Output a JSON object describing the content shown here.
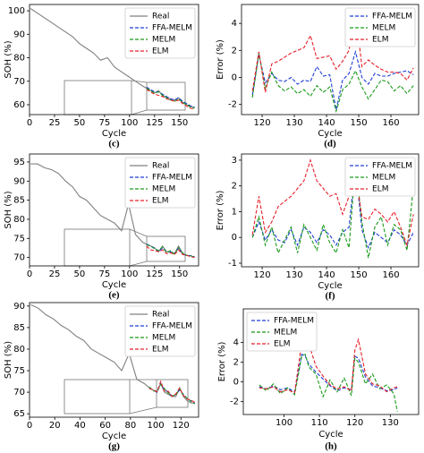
{
  "chart_data": [
    {
      "type": "line",
      "caption": "(c)",
      "xlabel": "Cycle",
      "ylabel": "SOH (%)",
      "legend": "upper right",
      "xlim": [
        0,
        169
      ],
      "ylim": [
        55.8,
        102.7
      ],
      "xticks": [
        0,
        25,
        50,
        75,
        100,
        125,
        150
      ],
      "yticks": [
        60,
        70,
        80,
        90,
        100
      ],
      "x": [
        1,
        8,
        15,
        22,
        29,
        36,
        43,
        50,
        57,
        64,
        71,
        78,
        85,
        92,
        99,
        106,
        113,
        117,
        121,
        125,
        129,
        133,
        137,
        141,
        145,
        149,
        153,
        157,
        161,
        165
      ],
      "series": [
        {
          "name": "Real",
          "color": "#808080",
          "linestyle": "solid",
          "values": [
            101,
            99,
            97,
            95,
            93,
            91,
            89,
            86,
            84,
            82,
            79,
            80,
            76,
            74,
            72,
            70,
            68,
            67,
            66,
            65,
            66,
            64,
            63,
            62.5,
            62,
            63,
            61,
            60,
            59.5,
            58.5
          ]
        },
        {
          "name": "FFA-MELM",
          "color": "#1f3fd6",
          "linestyle": "dashed",
          "values": [
            null,
            null,
            null,
            null,
            null,
            null,
            null,
            null,
            null,
            null,
            null,
            null,
            null,
            null,
            null,
            null,
            null,
            67.5,
            66.5,
            65.5,
            65.5,
            64.5,
            63.5,
            62.5,
            62,
            63,
            61.5,
            60.5,
            59.5,
            59
          ]
        },
        {
          "name": "MELM",
          "color": "#1a9a1a",
          "linestyle": "dashed",
          "values": [
            null,
            null,
            null,
            null,
            null,
            null,
            null,
            null,
            null,
            null,
            null,
            null,
            null,
            null,
            null,
            null,
            null,
            67,
            66,
            65,
            65.5,
            64,
            63,
            62,
            61.5,
            62.5,
            61,
            60,
            59,
            58.5
          ]
        },
        {
          "name": "ELM",
          "color": "#e8202a",
          "linestyle": "dashed",
          "values": [
            null,
            null,
            null,
            null,
            null,
            null,
            null,
            null,
            null,
            null,
            null,
            null,
            null,
            null,
            null,
            null,
            null,
            66.5,
            65.5,
            64.5,
            64,
            63.5,
            62.5,
            62,
            61.5,
            62,
            60.5,
            59.5,
            58.5,
            58
          ]
        }
      ]
    },
    {
      "type": "line",
      "caption": "(d)",
      "xlabel": "Cycle",
      "ylabel": "Error (%)",
      "legend": "upper right",
      "xlim": [
        113.6,
        168.6
      ],
      "ylim": [
        -2.75,
        5.4
      ],
      "xticks": [
        120,
        130,
        140,
        150,
        160
      ],
      "yticks": [
        -2,
        0,
        2,
        4
      ],
      "x": [
        117,
        119,
        121,
        123,
        125,
        127,
        129,
        131,
        133,
        135,
        137,
        139,
        141,
        143,
        145,
        147,
        149,
        151,
        153,
        155,
        157,
        159,
        161,
        163,
        165,
        167
      ],
      "series": [
        {
          "name": "FFA-MELM",
          "color": "#1f3fd6",
          "linestyle": "dashed",
          "values": [
            -1.3,
            1.7,
            -0.4,
            0.3,
            -0.2,
            -0.3,
            0.0,
            -0.5,
            -0.2,
            -0.3,
            0.8,
            0.1,
            0.2,
            -2.4,
            -0.2,
            0.3,
            1.9,
            0.0,
            -0.5,
            0.3,
            0.1,
            0.1,
            0.3,
            0.4,
            0.5,
            0.2
          ]
        },
        {
          "name": "MELM",
          "color": "#1a9a1a",
          "linestyle": "dashed",
          "values": [
            -1.5,
            1.8,
            -0.8,
            0.4,
            -0.6,
            -1.0,
            -0.7,
            -1.2,
            -0.9,
            -1.4,
            -0.6,
            -1.1,
            -0.7,
            -2.5,
            -0.9,
            -0.5,
            0.5,
            -0.7,
            -1.6,
            -0.9,
            -0.2,
            -0.3,
            -1.0,
            -0.6,
            -1.2,
            -0.6
          ]
        },
        {
          "name": "ELM",
          "color": "#e8202a",
          "linestyle": "dashed",
          "values": [
            -1.0,
            1.9,
            -1.1,
            1.0,
            1.2,
            1.5,
            1.8,
            2.0,
            2.2,
            3.1,
            1.4,
            1.5,
            1.6,
            0.6,
            1.2,
            2.0,
            4.9,
            0.8,
            1.3,
            0.9,
            0.6,
            0.4,
            0.4,
            0.3,
            -0.2,
            0.7
          ]
        }
      ]
    },
    {
      "type": "line",
      "caption": "(e)",
      "xlabel": "Cycle",
      "ylabel": "SOH (%)",
      "legend": "upper right",
      "xlim": [
        0,
        169
      ],
      "ylim": [
        67.8,
        97.1
      ],
      "xticks": [
        0,
        25,
        50,
        75,
        100,
        125,
        150
      ],
      "yticks": [
        70,
        75,
        80,
        85,
        90,
        95
      ],
      "x": [
        1,
        8,
        15,
        22,
        29,
        36,
        43,
        50,
        57,
        64,
        71,
        78,
        85,
        92,
        99,
        106,
        113,
        117,
        121,
        125,
        129,
        133,
        137,
        141,
        145,
        149,
        153,
        157,
        161,
        165
      ],
      "series": [
        {
          "name": "Real",
          "color": "#808080",
          "linestyle": "solid",
          "values": [
            94.5,
            94.5,
            93.5,
            93,
            92,
            90,
            88.5,
            86,
            85,
            83,
            81,
            80,
            79,
            77,
            84,
            76,
            74,
            73.5,
            73,
            72.5,
            71.5,
            73,
            71.5,
            71.5,
            71,
            73,
            71,
            70.5,
            70.5,
            70
          ]
        },
        {
          "name": "FFA-MELM",
          "color": "#1f3fd6",
          "linestyle": "dashed",
          "values": [
            null,
            null,
            null,
            null,
            null,
            null,
            null,
            null,
            null,
            null,
            null,
            null,
            null,
            null,
            null,
            null,
            null,
            73.5,
            73,
            72.5,
            71.5,
            72.5,
            71.5,
            71.5,
            71,
            72.5,
            71,
            70.5,
            70.5,
            70.2
          ]
        },
        {
          "name": "MELM",
          "color": "#1a9a1a",
          "linestyle": "dashed",
          "values": [
            null,
            null,
            null,
            null,
            null,
            null,
            null,
            null,
            null,
            null,
            null,
            null,
            null,
            null,
            null,
            null,
            null,
            73.3,
            73,
            72.3,
            71.8,
            72.8,
            71.3,
            71.8,
            70.8,
            72.6,
            71.2,
            70.6,
            70.4,
            70.1
          ]
        },
        {
          "name": "ELM",
          "color": "#e8202a",
          "linestyle": "dashed",
          "values": [
            null,
            null,
            null,
            null,
            null,
            null,
            null,
            null,
            null,
            null,
            null,
            null,
            null,
            null,
            null,
            null,
            null,
            73,
            72,
            71.8,
            71.5,
            72,
            71,
            71.2,
            70.8,
            72,
            70.8,
            70.6,
            70.2,
            70
          ]
        }
      ]
    },
    {
      "type": "line",
      "caption": "(f)",
      "xlabel": "Cycle",
      "ylabel": "Error (%)",
      "legend": "upper right",
      "xlim": [
        113.6,
        168.6
      ],
      "ylim": [
        -1.14,
        3.24
      ],
      "xticks": [
        120,
        130,
        140,
        150,
        160
      ],
      "yticks": [
        -1,
        0,
        1,
        2,
        3
      ],
      "x": [
        117,
        119,
        121,
        123,
        125,
        127,
        129,
        131,
        133,
        135,
        137,
        139,
        141,
        143,
        145,
        147,
        149,
        151,
        153,
        155,
        157,
        159,
        161,
        163,
        165,
        167
      ],
      "series": [
        {
          "name": "FFA-MELM",
          "color": "#1f3fd6",
          "linestyle": "dashed",
          "values": [
            0,
            0.6,
            -0.1,
            0.3,
            -0.1,
            -0.2,
            0.3,
            -0.3,
            0.4,
            0.2,
            -0.2,
            0.3,
            0.1,
            -0.3,
            0.2,
            0.4,
            2.8,
            0.3,
            -0.4,
            0.2,
            0.0,
            -0.2,
            0.3,
            0.1,
            -0.3,
            0.2
          ]
        },
        {
          "name": "MELM",
          "color": "#1a9a1a",
          "linestyle": "dashed",
          "values": [
            0,
            0.8,
            -0.3,
            0.4,
            -0.6,
            -0.1,
            0.4,
            -0.6,
            0.5,
            0.0,
            -0.5,
            0.5,
            -0.2,
            -0.6,
            0.3,
            -0.4,
            2.9,
            0.6,
            -0.8,
            0.4,
            0.8,
            -0.3,
            0.5,
            0.3,
            -0.5,
            2.0
          ]
        },
        {
          "name": "ELM",
          "color": "#e8202a",
          "linestyle": "dashed",
          "values": [
            0.1,
            1.6,
            0.2,
            0.6,
            1.2,
            1.4,
            1.6,
            1.9,
            2.2,
            3.0,
            2.2,
            1.9,
            1.6,
            1.7,
            0.9,
            1.6,
            2.5,
            0.8,
            0.7,
            1.1,
            0.9,
            0.6,
            1.0,
            0.4,
            -0.3,
            0.9
          ]
        }
      ]
    },
    {
      "type": "line",
      "caption": "(g)",
      "xlabel": "Cycle",
      "ylabel": "SOH (%)",
      "legend": "upper right",
      "xlim": [
        0,
        134
      ],
      "ylim": [
        64.2,
        90.8
      ],
      "xticks": [
        0,
        20,
        40,
        60,
        80,
        100,
        120
      ],
      "yticks": [
        65,
        70,
        75,
        80,
        85,
        90
      ],
      "x": [
        1,
        7,
        13,
        19,
        25,
        31,
        37,
        43,
        49,
        55,
        61,
        67,
        73,
        79,
        85,
        91,
        95,
        98,
        101,
        104,
        107,
        110,
        113,
        116,
        119,
        122,
        125,
        128,
        131
      ],
      "series": [
        {
          "name": "Real",
          "color": "#808080",
          "linestyle": "solid",
          "values": [
            90.3,
            89.5,
            88,
            87,
            85.5,
            84.5,
            83,
            82,
            80,
            79,
            78,
            77,
            75,
            79,
            73,
            72,
            71,
            70.5,
            70,
            72,
            70,
            69.5,
            69,
            69,
            71,
            69,
            68,
            67.5,
            67.5
          ]
        },
        {
          "name": "FFA-MELM",
          "color": "#1f3fd6",
          "linestyle": "dashed",
          "values": [
            null,
            null,
            null,
            null,
            null,
            null,
            null,
            null,
            null,
            null,
            null,
            null,
            null,
            null,
            null,
            null,
            71,
            70.5,
            70,
            72,
            70.5,
            70,
            69,
            69.5,
            70.5,
            69.5,
            68.5,
            68,
            67.5
          ]
        },
        {
          "name": "MELM",
          "color": "#1a9a1a",
          "linestyle": "dashed",
          "values": [
            null,
            null,
            null,
            null,
            null,
            null,
            null,
            null,
            null,
            null,
            null,
            null,
            null,
            null,
            null,
            null,
            71.2,
            70.3,
            70.2,
            71.8,
            70.8,
            69.8,
            69.2,
            69.3,
            70.8,
            69.3,
            68.6,
            67.8,
            67.3
          ]
        },
        {
          "name": "ELM",
          "color": "#e8202a",
          "linestyle": "dashed",
          "values": [
            null,
            null,
            null,
            null,
            null,
            null,
            null,
            null,
            null,
            null,
            null,
            null,
            null,
            null,
            null,
            null,
            70.8,
            70.6,
            70.1,
            72.5,
            70.2,
            70.2,
            69,
            69.6,
            71,
            69.2,
            68.4,
            68.2,
            67.6
          ]
        }
      ]
    },
    {
      "type": "line",
      "caption": "(h)",
      "xlabel": "Cycle",
      "ylabel": "Error (%)",
      "legend": "upper left",
      "xlim": [
        88.5,
        138
      ],
      "ylim": [
        -3.3,
        7.4
      ],
      "xticks": [
        100,
        110,
        120,
        130
      ],
      "yticks": [
        -2,
        0,
        2,
        4
      ],
      "x": [
        93,
        95,
        97,
        99,
        101,
        103,
        105,
        106,
        107,
        109,
        111,
        113,
        115,
        117,
        119,
        120,
        121,
        123,
        125,
        127,
        129,
        131,
        132
      ],
      "series": [
        {
          "name": "FFA-MELM",
          "color": "#1f3fd6",
          "linestyle": "dashed",
          "values": [
            -0.5,
            -0.7,
            -0.4,
            -0.8,
            -0.6,
            -1.0,
            2.8,
            2.6,
            1.8,
            1.0,
            0.3,
            -0.4,
            -0.9,
            -0.6,
            -0.8,
            2.6,
            2.4,
            0.5,
            -0.4,
            -0.6,
            -0.9,
            -0.8,
            -0.6
          ]
        },
        {
          "name": "MELM",
          "color": "#1a9a1a",
          "linestyle": "dashed",
          "values": [
            -0.3,
            -0.9,
            -0.2,
            -1.2,
            -0.6,
            -1.3,
            2.6,
            2.8,
            1.5,
            0.8,
            -1.5,
            0.2,
            -1.0,
            0.4,
            -1.4,
            2.4,
            2.0,
            -0.2,
            0.8,
            -0.7,
            -0.3,
            -1.2,
            -3.0
          ]
        },
        {
          "name": "ELM",
          "color": "#e8202a",
          "linestyle": "dashed",
          "values": [
            -0.6,
            -0.7,
            -0.5,
            -1.0,
            -0.8,
            -1.1,
            4.0,
            5.3,
            3.8,
            1.6,
            0.6,
            -0.3,
            -0.7,
            -0.5,
            -0.9,
            3.2,
            4.3,
            0.8,
            -0.2,
            -0.4,
            -1.0,
            -0.6,
            -0.5
          ]
        }
      ]
    }
  ]
}
